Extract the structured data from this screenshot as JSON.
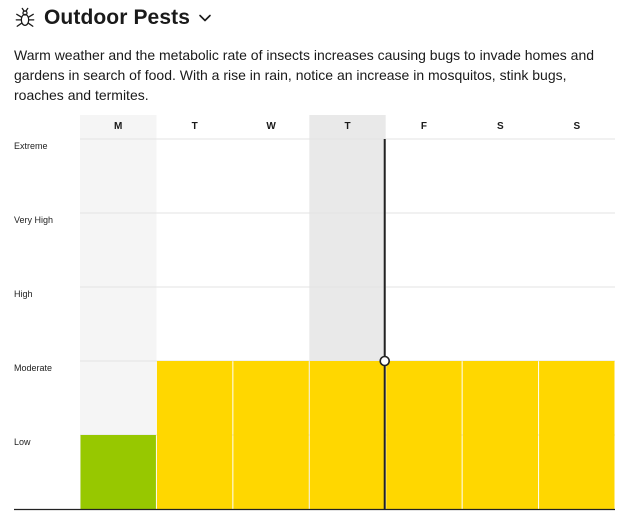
{
  "header": {
    "title": "Outdoor Pests",
    "icon": "bug-icon",
    "chevron_icon": "chevron-down-icon"
  },
  "description": "Warm weather and the metabolic rate of insects increases causing bugs to invade homes and gardens in search of food. With a rise in rain, notice an increase in mosquitos, stink bugs, roaches and termites.",
  "colors": {
    "low": "#97c800",
    "moderate": "#ffd700",
    "past_day_shade": "#f5f5f5",
    "today_shade": "#e9e9e9",
    "now_line": "#222222",
    "grid": "#e3e3e3"
  },
  "chart_data": {
    "type": "bar",
    "categories": [
      "M",
      "T",
      "W",
      "T",
      "F",
      "S",
      "S"
    ],
    "levels": [
      "Low",
      "Moderate",
      "High",
      "Very High",
      "Extreme"
    ],
    "values": [
      1,
      2,
      2,
      2,
      2,
      2,
      2
    ],
    "ylim": [
      0,
      5
    ],
    "grid": true,
    "past_day_index": 0,
    "today_index": 3,
    "now_marker_fraction": 1.0
  }
}
